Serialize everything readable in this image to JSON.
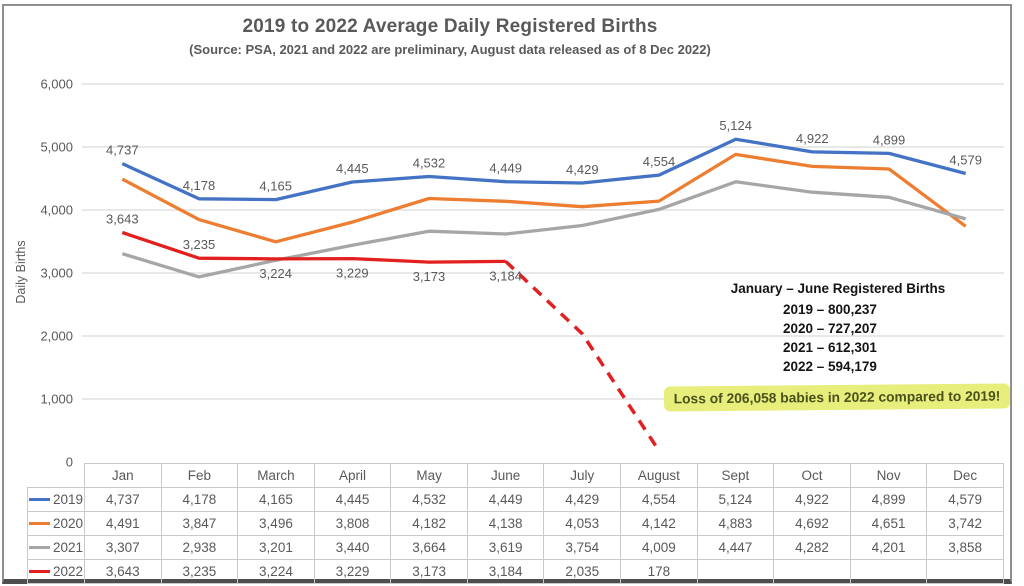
{
  "header": {
    "title": "2019 to 2022 Average Daily Registered Births",
    "subtitle": "(Source: PSA, 2021 and 2022 are preliminary, August data released as of 8 Dec 2022)"
  },
  "chart_data": {
    "type": "line",
    "title": "2019 to 2022 Average Daily Registered Births",
    "xlabel": "",
    "ylabel": "Daily Births",
    "ylim": [
      0,
      6000
    ],
    "ytick_interval": 1000,
    "ytick_labels": [
      "0",
      "1,000",
      "2,000",
      "3,000",
      "4,000",
      "5,000",
      "6,000"
    ],
    "grid": true,
    "gridline_color": "#d9d9d9",
    "axis_text_color": "#595959",
    "legend_position": "table-rows-left",
    "categories": [
      "Jan",
      "Feb",
      "March",
      "April",
      "May",
      "June",
      "July",
      "August",
      "Sept",
      "Oct",
      "Nov",
      "Dec"
    ],
    "series": [
      {
        "name": "2019",
        "color": "#4472C4",
        "style": "solid",
        "values": [
          4737,
          4178,
          4165,
          4445,
          4532,
          4449,
          4429,
          4554,
          5124,
          4922,
          4899,
          4579
        ],
        "label_placement": [
          "above",
          "above",
          "above",
          "above",
          "above",
          "above",
          "above",
          "above",
          "above",
          "above",
          "above",
          "above"
        ]
      },
      {
        "name": "2020",
        "color": "#ED7D31",
        "style": "solid",
        "values": [
          4491,
          3847,
          3496,
          3808,
          4182,
          4138,
          4053,
          4142,
          4883,
          4692,
          4651,
          3742
        ],
        "label_placement": [
          "none",
          "none",
          "none",
          "none",
          "none",
          "none",
          "none",
          "none",
          "none",
          "none",
          "none",
          "none"
        ]
      },
      {
        "name": "2021",
        "color": "#A6A6A6",
        "style": "solid",
        "values": [
          3307,
          2938,
          3201,
          3440,
          3664,
          3619,
          3754,
          4009,
          4447,
          4282,
          4201,
          3858
        ],
        "label_placement": [
          "none",
          "none",
          "none",
          "none",
          "none",
          "none",
          "none",
          "none",
          "none",
          "none",
          "none",
          "none"
        ]
      },
      {
        "name": "2022",
        "color": "#E22020",
        "style": "solid-then-dashed",
        "dashed_from_index": 5,
        "values": [
          3643,
          3235,
          3224,
          3229,
          3173,
          3184,
          2035,
          178,
          null,
          null,
          null,
          null
        ],
        "label_placement": [
          "above",
          "above",
          "below",
          "below",
          "below",
          "below",
          "none",
          "none",
          "none",
          "none",
          "none",
          "none"
        ]
      }
    ]
  },
  "annotation": {
    "heading": "January – June Registered Births",
    "lines": [
      "2019 – 800,237",
      "2020 – 727,207",
      "2021 – 612,301",
      "2022 – 594,179"
    ]
  },
  "highlight_note": {
    "text": "Loss of 206,058 babies in 2022 compared to 2019!",
    "highlight_color": "#e7ee7c"
  }
}
